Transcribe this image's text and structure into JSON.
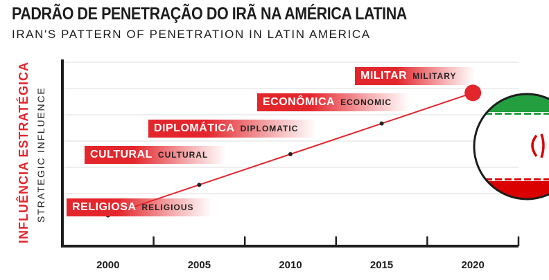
{
  "title_pt": "PADRÃO DE PENETRAÇÃO DO IRÃ NA AMÉRICA LATINA",
  "title_en": "IRAN'S PATTERN OF PENETRATION IN LATIN AMERICA",
  "colors": {
    "accent": "#e3262c",
    "axis": "#1d1d1d",
    "grid": "#dcdcdc",
    "flag_green": "#239f40",
    "flag_red": "#da0000"
  },
  "chart_data": {
    "type": "line",
    "title": "PADRÃO DE PENETRAÇÃO DO IRÃ NA AMÉRICA LATINA",
    "subtitle": "IRAN'S PATTERN OF PENETRATION IN LATIN AMERICA",
    "xlabel": "",
    "ylabel": "INFLUÊNCIA ESTRATÉGICA",
    "ylabel_en": "STRATEGIC INFLUENCE",
    "x": [
      2000,
      2005,
      2010,
      2015,
      2020
    ],
    "xlim": [
      1997.5,
      2022.5
    ],
    "ylim": [
      0,
      6
    ],
    "grid": true,
    "series": [
      {
        "values": [
          1,
          2,
          3,
          4,
          5
        ]
      }
    ],
    "annotations": [
      {
        "pt": "RELIGIOSA",
        "en": "RELIGIOUS"
      },
      {
        "pt": "CULTURAL",
        "en": "CULTURAL"
      },
      {
        "pt": "DIPLOMÁTICA",
        "en": "DIPLOMATIC"
      },
      {
        "pt": "ECONÔMICA",
        "en": "ECONOMIC"
      },
      {
        "pt": "MILITAR",
        "en": "MILITARY"
      }
    ]
  }
}
